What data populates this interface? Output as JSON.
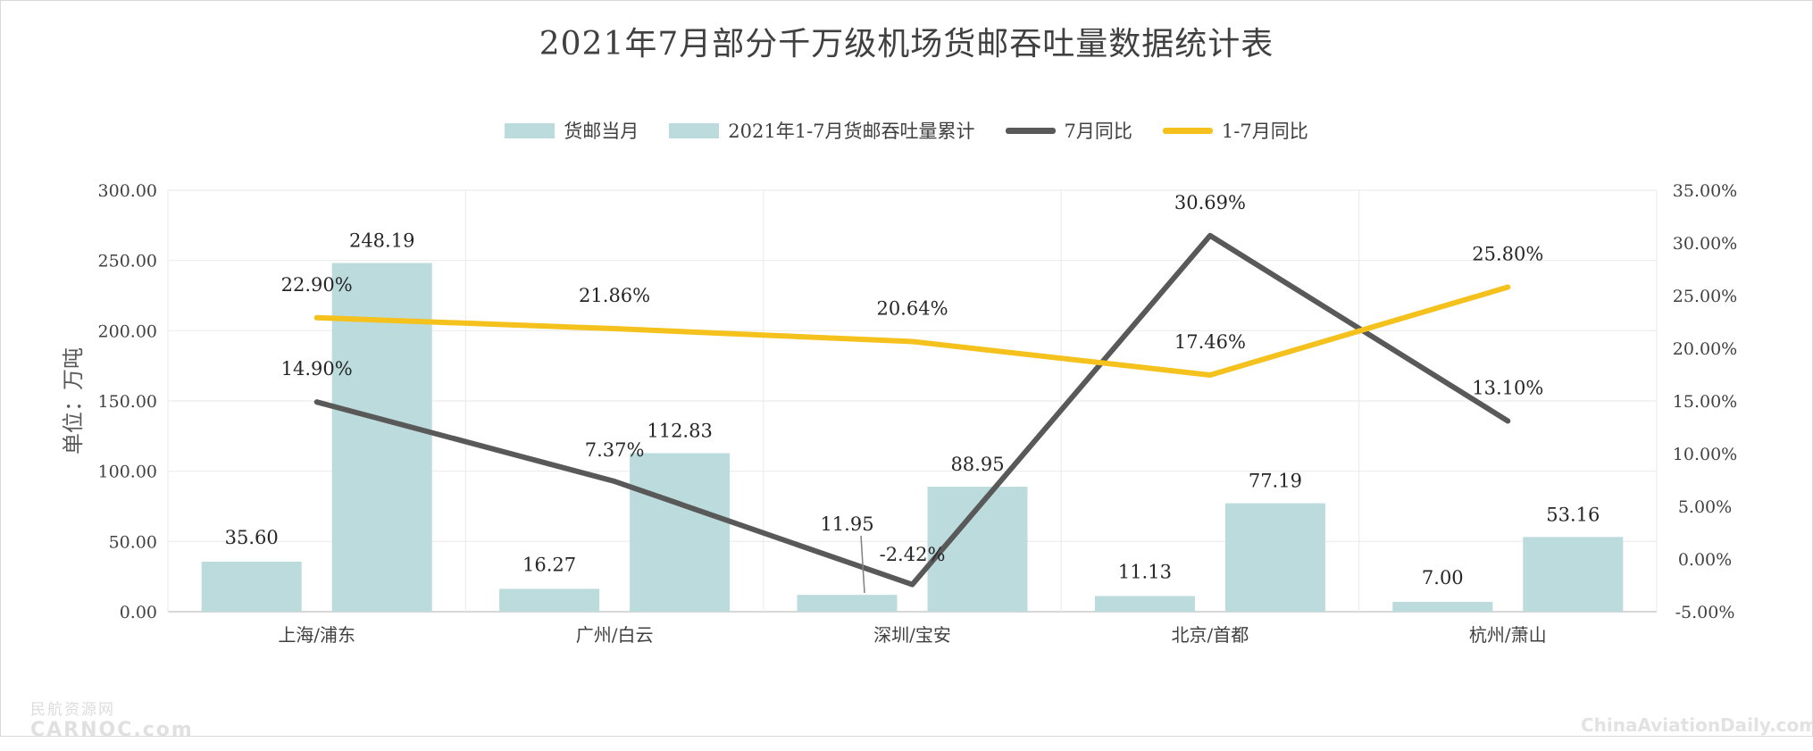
{
  "chart_data": {
    "type": "bar",
    "title": "2021年7月部分千万级机场货邮吞吐量数据统计表",
    "categories": [
      "上海/浦东",
      "广州/白云",
      "深圳/宝安",
      "北京/首都",
      "杭州/萧山"
    ],
    "ylabel": "单位：万吨",
    "ylim": [
      0,
      300
    ],
    "y_ticks": [
      "0.00",
      "50.00",
      "100.00",
      "150.00",
      "200.00",
      "250.00",
      "300.00"
    ],
    "y2lim": [
      -5,
      35
    ],
    "y2_ticks": [
      "-5.00%",
      "0.00%",
      "5.00%",
      "10.00%",
      "15.00%",
      "20.00%",
      "25.00%",
      "30.00%",
      "35.00%"
    ],
    "grid": true,
    "legend_position": "top",
    "bar_series": [
      {
        "name": "货邮当月",
        "values": [
          35.6,
          16.27,
          11.95,
          11.13,
          7.0
        ],
        "labels": [
          "35.60",
          "16.27",
          "11.95",
          "11.13",
          "7.00"
        ],
        "color": "#bcdbdc"
      },
      {
        "name": "2021年1-7月货邮吞吐量累计",
        "values": [
          248.19,
          112.83,
          88.95,
          77.19,
          53.16
        ],
        "labels": [
          "248.19",
          "112.83",
          "88.95",
          "77.19",
          "53.16"
        ],
        "color": "#bcdbdc"
      }
    ],
    "line_series": [
      {
        "name": "7月同比",
        "values": [
          14.9,
          7.37,
          -2.42,
          30.69,
          13.1
        ],
        "labels": [
          "14.90%",
          "7.37%",
          "-2.42%",
          "30.69%",
          "13.10%"
        ],
        "color": "#595959",
        "axis": "right"
      },
      {
        "name": "1-7月同比",
        "values": [
          22.9,
          21.86,
          20.64,
          17.46,
          25.8
        ],
        "labels": [
          "22.90%",
          "21.86%",
          "20.64%",
          "17.46%",
          "25.80%"
        ],
        "color": "#f5c11c",
        "axis": "right"
      }
    ]
  },
  "watermark_left": {
    "cn": "民航资源网",
    "en": "CARNOC.com"
  },
  "watermark_right": "ChinaAviationDaily.com"
}
